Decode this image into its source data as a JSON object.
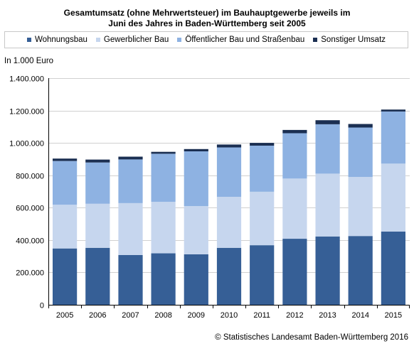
{
  "title_lines": [
    "Gesamtumsatz (ohne Mehrwertsteuer) im Bauhauptgewerbe jeweils im",
    "Juni des Jahres in Baden-Württemberg seit 2005"
  ],
  "unit_label": "In 1.000 Euro",
  "source": "© Statistisches Landesamt Baden-Württemberg 2016",
  "colors": {
    "wohnungsbau": "#365f96",
    "gewerblicher_bau": "#c6d6ee",
    "oeffentlicher_bau": "#8eb2e2",
    "sonstiger_umsatz": "#1b2f52"
  },
  "chart_data": {
    "type": "bar",
    "stacked": true,
    "title": "Gesamtumsatz (ohne Mehrwertsteuer) im Bauhauptgewerbe jeweils im Juni des Jahres in Baden-Württemberg seit 2005",
    "ylabel": "In 1.000 Euro",
    "xlabel": "",
    "ylim": [
      0,
      1400000
    ],
    "yticks": [
      0,
      200000,
      400000,
      600000,
      800000,
      1000000,
      1200000,
      1400000
    ],
    "ytick_labels": [
      "0",
      "200.000",
      "400.000",
      "600.000",
      "800.000",
      "1.000.000",
      "1.200.000",
      "1.400.000"
    ],
    "grid": true,
    "legend_position": "top",
    "categories": [
      "2005",
      "2006",
      "2007",
      "2008",
      "2009",
      "2010",
      "2011",
      "2012",
      "2013",
      "2014",
      "2015"
    ],
    "series": [
      {
        "name": "Wohnungsbau",
        "color": "#365f96",
        "values": [
          348000,
          352000,
          307000,
          318000,
          312000,
          352000,
          368000,
          408000,
          422000,
          425000,
          452000
        ]
      },
      {
        "name": "Gewerblicher Bau",
        "color": "#c6d6ee",
        "values": [
          270000,
          272000,
          321000,
          318000,
          298000,
          315000,
          330000,
          372000,
          388000,
          365000,
          420000
        ]
      },
      {
        "name": "Öffentlicher Bau und Straßenbau",
        "color": "#8eb2e2",
        "values": [
          270000,
          255000,
          270000,
          297000,
          338000,
          305000,
          285000,
          280000,
          305000,
          305000,
          322000
        ]
      },
      {
        "name": "Sonstiger Umsatz",
        "color": "#1b2f52",
        "values": [
          15000,
          18000,
          17000,
          12000,
          14000,
          18000,
          17000,
          20000,
          25000,
          22000,
          12000
        ]
      }
    ]
  }
}
